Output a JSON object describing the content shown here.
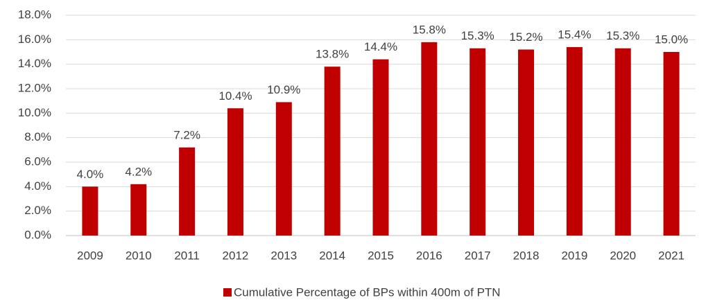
{
  "chart_data": {
    "type": "bar",
    "categories": [
      "2009",
      "2010",
      "2011",
      "2012",
      "2013",
      "2014",
      "2015",
      "2016",
      "2017",
      "2018",
      "2019",
      "2020",
      "2021"
    ],
    "series": [
      {
        "name": "Cumulative Percentage of BPs within 400m of PTN",
        "color": "#c00000",
        "values": [
          4.0,
          4.2,
          7.2,
          10.4,
          10.9,
          13.8,
          14.4,
          15.8,
          15.3,
          15.2,
          15.4,
          15.3,
          15.0
        ],
        "value_labels": [
          "4.0%",
          "4.2%",
          "7.2%",
          "10.4%",
          "10.9%",
          "13.8%",
          "14.4%",
          "15.8%",
          "15.3%",
          "15.2%",
          "15.4%",
          "15.3%",
          "15.0%"
        ]
      }
    ],
    "ylim": [
      0,
      18
    ],
    "yticks": [
      {
        "value": 0,
        "label": "0.0%"
      },
      {
        "value": 2,
        "label": "2.0%"
      },
      {
        "value": 4,
        "label": "4.0%"
      },
      {
        "value": 6,
        "label": "6.0%"
      },
      {
        "value": 8,
        "label": "8.0%"
      },
      {
        "value": 10,
        "label": "10.0%"
      },
      {
        "value": 12,
        "label": "12.0%"
      },
      {
        "value": 14,
        "label": "14.0%"
      },
      {
        "value": 16,
        "label": "16.0%"
      },
      {
        "value": 18,
        "label": "18.0%"
      }
    ],
    "grid": true,
    "legend": "bottom"
  }
}
